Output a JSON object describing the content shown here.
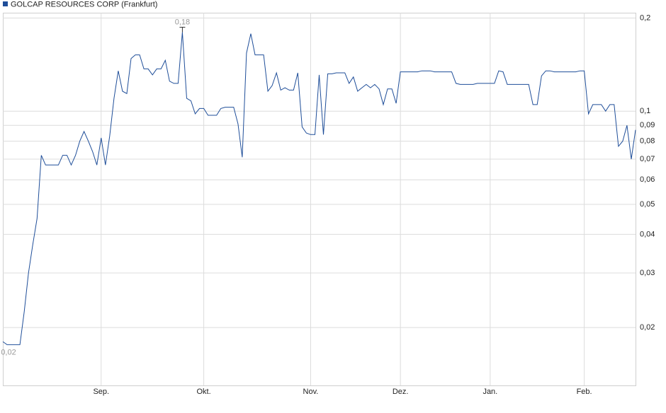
{
  "chart_data": {
    "type": "line",
    "log_y": true,
    "grid": true,
    "categories": [
      null,
      null,
      null,
      null,
      null,
      null,
      null,
      null,
      null,
      null,
      null,
      null,
      null,
      null,
      null,
      null,
      null,
      null,
      null,
      null,
      null,
      null,
      null,
      "Sep.",
      null,
      null,
      null,
      null,
      null,
      null,
      null,
      null,
      null,
      null,
      null,
      null,
      null,
      null,
      null,
      null,
      null,
      null,
      null,
      null,
      null,
      null,
      null,
      "Okt.",
      null,
      null,
      null,
      null,
      null,
      null,
      null,
      null,
      null,
      null,
      null,
      null,
      null,
      null,
      null,
      null,
      null,
      null,
      null,
      null,
      null,
      null,
      null,
      null,
      "Nov.",
      null,
      null,
      null,
      null,
      null,
      null,
      null,
      null,
      null,
      null,
      null,
      null,
      null,
      null,
      null,
      null,
      null,
      null,
      null,
      null,
      "Dez.",
      null,
      null,
      null,
      null,
      null,
      null,
      null,
      null,
      null,
      null,
      null,
      null,
      null,
      null,
      null,
      null,
      null,
      null,
      null,
      null,
      "Jan.",
      null,
      null,
      null,
      null,
      null,
      null,
      null,
      null,
      null,
      null,
      null,
      null,
      null,
      null,
      null,
      null,
      null,
      null,
      null,
      null,
      null,
      "Feb.",
      null,
      null,
      null,
      null,
      null,
      null,
      null,
      null,
      null,
      null,
      null,
      null
    ],
    "series": [
      {
        "name": "GOLCAP RESOURCES CORP (Frankfurt)",
        "color": "#1f4e99",
        "values": [
          0.018,
          0.0176,
          0.0176,
          0.0176,
          0.0176,
          0.0225,
          0.03,
          0.037,
          0.045,
          0.072,
          0.067,
          0.067,
          0.067,
          0.067,
          0.072,
          0.072,
          0.067,
          0.072,
          0.08,
          0.086,
          0.08,
          0.074,
          0.067,
          0.082,
          0.067,
          0.083,
          0.11,
          0.135,
          0.116,
          0.114,
          0.148,
          0.152,
          0.152,
          0.137,
          0.137,
          0.131,
          0.137,
          0.137,
          0.146,
          0.125,
          0.123,
          0.123,
          0.18,
          0.11,
          0.108,
          0.098,
          0.102,
          0.102,
          0.097,
          0.097,
          0.097,
          0.102,
          0.103,
          0.103,
          0.103,
          0.091,
          0.071,
          0.154,
          0.178,
          0.152,
          0.152,
          0.152,
          0.116,
          0.121,
          0.133,
          0.117,
          0.119,
          0.117,
          0.117,
          0.133,
          0.089,
          0.085,
          0.084,
          0.084,
          0.131,
          0.084,
          0.132,
          0.132,
          0.133,
          0.133,
          0.133,
          0.123,
          0.129,
          0.116,
          0.119,
          0.122,
          0.119,
          0.122,
          0.118,
          0.105,
          0.118,
          0.118,
          0.106,
          0.134,
          0.134,
          0.134,
          0.134,
          0.134,
          0.135,
          0.135,
          0.135,
          0.134,
          0.134,
          0.134,
          0.134,
          0.134,
          0.123,
          0.122,
          0.122,
          0.122,
          0.122,
          0.123,
          0.123,
          0.123,
          0.123,
          0.123,
          0.135,
          0.134,
          0.122,
          0.122,
          0.122,
          0.122,
          0.122,
          0.122,
          0.105,
          0.105,
          0.13,
          0.135,
          0.135,
          0.134,
          0.134,
          0.134,
          0.134,
          0.134,
          0.134,
          0.135,
          0.135,
          0.098,
          0.105,
          0.105,
          0.105,
          0.1,
          0.105,
          0.105,
          0.077,
          0.08,
          0.09,
          0.07,
          0.087
        ]
      }
    ],
    "max_label": "0,18",
    "min_label": "0,02",
    "ylim": [
      0.013,
      0.208
    ],
    "yticks": [
      {
        "value": 0.02,
        "label": "0,02"
      },
      {
        "value": 0.03,
        "label": "0,03"
      },
      {
        "value": 0.04,
        "label": "0,04"
      },
      {
        "value": 0.05,
        "label": "0,05"
      },
      {
        "value": 0.06,
        "label": "0,06"
      },
      {
        "value": 0.07,
        "label": "0,07"
      },
      {
        "value": 0.08,
        "label": "0,08"
      },
      {
        "value": 0.09,
        "label": "0,09"
      },
      {
        "value": 0.1,
        "label": "0,1"
      },
      {
        "value": 0.2,
        "label": "0,2"
      }
    ]
  }
}
